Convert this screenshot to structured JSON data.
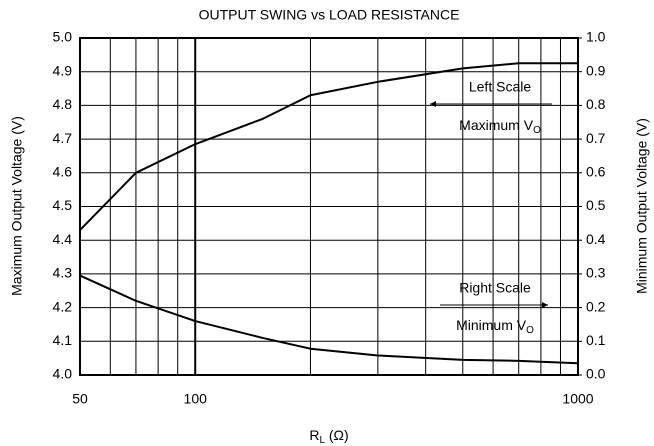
{
  "chart_data": {
    "type": "line",
    "title": "OUTPUT SWING vs LOAD RESISTANCE",
    "x_label": {
      "text": "R",
      "sub": "L",
      "rest": " (Ω)"
    },
    "y_label": "Maximum Output Voltage (V)",
    "y2_label": "Minimum Output Voltage (V)",
    "log_x": true,
    "grid": true,
    "x": [
      50,
      70,
      100,
      150,
      200,
      300,
      500,
      700,
      1000
    ],
    "series": [
      {
        "name": "Maximum V",
        "color": "#000000",
        "values": [
          4.43,
          4.6,
          4.685,
          4.76,
          4.83,
          4.87,
          4.91,
          4.925,
          4.925
        ]
      },
      {
        "name": "Minimum V",
        "color": "#000000",
        "axis": "y2",
        "values": [
          0.295,
          0.22,
          0.16,
          0.11,
          0.078,
          0.058,
          0.045,
          0.042,
          0.035
        ]
      }
    ],
    "annotations": [
      {
        "text": "Left Scale"
      },
      {
        "text": "Maximum V",
        "sub": "O"
      },
      {
        "text": "Right Scale"
      },
      {
        "text": "Minimum V",
        "sub": "O"
      }
    ],
    "xlim": [
      50,
      1000
    ],
    "xticks": [
      50,
      100,
      1000
    ],
    "xgrid": [
      60,
      70,
      80,
      90,
      200,
      300,
      400,
      500,
      600,
      700,
      800,
      900
    ],
    "ylim": [
      4.0,
      5.0
    ],
    "yticks": [
      {
        "value": 4.0,
        "label": "4.0"
      },
      4.1,
      4.2,
      4.3,
      4.4,
      4.5,
      4.6,
      4.7,
      4.8,
      4.9,
      {
        "value": 5.0,
        "label": "5.0"
      }
    ],
    "y2lim": [
      0.0,
      1.0
    ],
    "y2ticks": [
      {
        "value": 0.0,
        "label": "0.0"
      },
      0.1,
      0.2,
      0.3,
      0.4,
      0.5,
      0.6,
      0.7,
      0.8,
      0.9,
      {
        "value": 1.0,
        "label": "1.0"
      }
    ]
  }
}
